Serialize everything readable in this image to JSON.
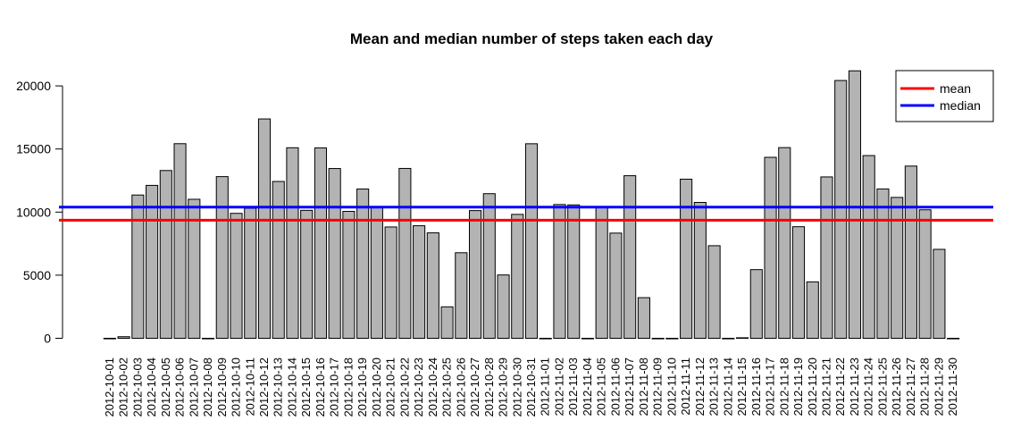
{
  "chart_data": {
    "type": "bar",
    "title": "Mean and median number of steps taken each day",
    "xlabel": "",
    "ylabel": "",
    "ylim": [
      0,
      21500
    ],
    "yticks": [
      0,
      5000,
      10000,
      15000,
      20000
    ],
    "bar_color": "#b3b3b3",
    "bar_border_color": "#000000",
    "categories": [
      "2012-10-01",
      "2012-10-02",
      "2012-10-03",
      "2012-10-04",
      "2012-10-05",
      "2012-10-06",
      "2012-10-07",
      "2012-10-08",
      "2012-10-09",
      "2012-10-10",
      "2012-10-11",
      "2012-10-12",
      "2012-10-13",
      "2012-10-14",
      "2012-10-15",
      "2012-10-16",
      "2012-10-17",
      "2012-10-18",
      "2012-10-19",
      "2012-10-20",
      "2012-10-21",
      "2012-10-22",
      "2012-10-23",
      "2012-10-24",
      "2012-10-25",
      "2012-10-26",
      "2012-10-27",
      "2012-10-28",
      "2012-10-29",
      "2012-10-30",
      "2012-10-31",
      "2012-11-01",
      "2012-11-02",
      "2012-11-03",
      "2012-11-04",
      "2012-11-05",
      "2012-11-06",
      "2012-11-07",
      "2012-11-08",
      "2012-11-09",
      "2012-11-10",
      "2012-11-11",
      "2012-11-12",
      "2012-11-13",
      "2012-11-14",
      "2012-11-15",
      "2012-11-16",
      "2012-11-17",
      "2012-11-18",
      "2012-11-19",
      "2012-11-20",
      "2012-11-21",
      "2012-11-22",
      "2012-11-23",
      "2012-11-24",
      "2012-11-25",
      "2012-11-26",
      "2012-11-27",
      "2012-11-28",
      "2012-11-29",
      "2012-11-30"
    ],
    "values": [
      0,
      126,
      11352,
      12116,
      13294,
      15420,
      11015,
      0,
      12811,
      9900,
      10304,
      17382,
      12426,
      15098,
      10139,
      15084,
      13452,
      10056,
      11829,
      10395,
      8821,
      13460,
      8918,
      8355,
      2492,
      6778,
      10119,
      11458,
      5018,
      9819,
      15414,
      0,
      10600,
      10571,
      0,
      10439,
      8334,
      12883,
      3219,
      0,
      0,
      12608,
      10765,
      7336,
      0,
      41,
      5441,
      14339,
      15110,
      8841,
      4472,
      12787,
      20427,
      21194,
      14478,
      11834,
      11162,
      13646,
      10183,
      7047,
      0
    ],
    "reference_lines": [
      {
        "name": "mean",
        "value": 9354,
        "color": "#ff0000"
      },
      {
        "name": "median",
        "value": 10395,
        "color": "#0000ff"
      }
    ],
    "legend": {
      "position": "top-right",
      "entries": [
        "mean",
        "median"
      ]
    }
  }
}
